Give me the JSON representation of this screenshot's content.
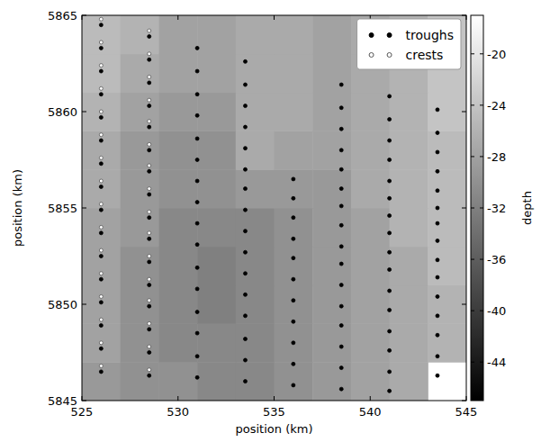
{
  "chart_data": {
    "type": "scatter",
    "xlabel": "position (km)",
    "ylabel": "position (km)",
    "xlim": [
      525,
      545
    ],
    "ylim": [
      5845,
      5865
    ],
    "xticks": [
      525,
      530,
      535,
      540,
      545
    ],
    "yticks": [
      5845,
      5850,
      5855,
      5860,
      5865
    ],
    "grid": false,
    "legend": "upper right",
    "series": [
      {
        "name": "troughs",
        "color": "black",
        "marker": "o",
        "x": [
          526,
          528.5,
          531,
          533.5,
          538.5,
          541,
          543.5,
          526,
          528.5,
          531,
          533.5,
          538.5,
          541,
          543.5,
          526,
          528.5,
          531,
          533.5,
          538.5,
          541,
          543.5,
          526,
          528.5,
          531,
          533.5,
          538.5,
          541,
          543.5,
          526,
          528.5,
          531,
          533.5,
          538.5,
          541,
          543.5,
          526,
          528.5,
          531,
          533.5,
          536,
          538.5,
          541,
          543.5,
          526,
          528.5,
          531,
          533.5,
          536,
          538.5,
          541,
          543.5,
          526,
          528.5,
          531,
          533.5,
          536,
          538.5,
          541,
          543.5,
          526,
          528.5,
          531,
          533.5,
          536,
          538.5,
          541,
          543.5,
          526,
          528.5,
          531,
          533.5,
          536,
          538.5,
          541,
          543.5,
          526,
          528.5,
          531,
          533.5,
          536,
          538.5,
          541,
          543.5,
          526,
          528.5,
          531,
          533.5,
          536,
          538.5,
          541,
          543.5,
          526,
          528.5,
          531,
          533.5,
          536,
          538.5,
          541,
          543.5,
          526,
          528.5,
          531,
          533.5,
          536,
          538.5,
          541,
          543.5,
          526,
          528.5,
          531,
          533.5,
          536,
          538.5,
          541,
          543.5,
          526,
          528.5,
          531,
          533.5,
          536,
          538.5,
          541
        ],
        "values": [
          5864.5,
          5863.9,
          5863.3,
          5862.6,
          5861.4,
          5860.8,
          5860.1,
          5863.3,
          5862.7,
          5862.1,
          5861.4,
          5860.2,
          5859.6,
          5858.9,
          5862.1,
          5861.5,
          5860.9,
          5860.3,
          5859.1,
          5858.5,
          5857.9,
          5860.9,
          5860.3,
          5859.8,
          5859.2,
          5858.0,
          5857.5,
          5856.9,
          5859.7,
          5859.2,
          5858.6,
          5858.1,
          5857.0,
          5856.4,
          5855.9,
          5858.5,
          5858.0,
          5857.5,
          5857.0,
          5856.5,
          5856.0,
          5855.5,
          5855.0,
          5857.3,
          5856.9,
          5856.4,
          5856.0,
          5855.5,
          5855.1,
          5854.6,
          5854.2,
          5856.1,
          5855.7,
          5855.3,
          5854.9,
          5854.5,
          5854.1,
          5853.7,
          5853.3,
          5854.9,
          5854.5,
          5854.2,
          5853.8,
          5853.4,
          5853.0,
          5852.7,
          5852.3,
          5853.7,
          5853.4,
          5853.1,
          5852.7,
          5852.4,
          5852.1,
          5851.8,
          5851.4,
          5852.5,
          5852.2,
          5851.9,
          5851.6,
          5851.3,
          5851.0,
          5850.7,
          5850.4,
          5851.3,
          5851.0,
          5850.8,
          5850.5,
          5850.2,
          5849.9,
          5849.7,
          5849.4,
          5850.1,
          5849.9,
          5849.6,
          5849.4,
          5849.1,
          5848.9,
          5848.6,
          5848.4,
          5848.9,
          5848.7,
          5848.5,
          5848.2,
          5848.0,
          5847.8,
          5847.6,
          5847.3,
          5847.7,
          5847.5,
          5847.3,
          5847.1,
          5846.9,
          5846.7,
          5846.5,
          5846.3,
          5846.5,
          5846.3,
          5846.2,
          5846.0,
          5845.8,
          5845.6,
          5845.5
        ]
      },
      {
        "name": "crests",
        "color": "white",
        "marker": "o",
        "x": [
          526,
          528.5,
          526,
          528.5,
          526,
          528.5,
          526,
          528.5,
          526,
          528.5,
          526,
          528.5,
          526,
          528.5,
          526,
          528.5,
          526,
          528.5,
          526,
          528.5,
          526,
          528.5,
          526,
          528.5,
          526,
          528.5,
          526,
          528.5,
          526,
          528.5,
          526,
          528.5
        ],
        "values": [
          5864.8,
          5864.2,
          5863.6,
          5863.0,
          5862.4,
          5861.8,
          5861.2,
          5860.6,
          5860.0,
          5859.5,
          5858.8,
          5858.3,
          5857.6,
          5857.2,
          5856.4,
          5856.0,
          5855.2,
          5854.8,
          5854.0,
          5853.7,
          5852.8,
          5852.5,
          5851.6,
          5851.3,
          5850.4,
          5850.2,
          5849.2,
          5849.0,
          5848.0,
          5847.8,
          5846.8,
          5846.6
        ]
      }
    ],
    "depth_grid": {
      "xbins": [
        525,
        527,
        529,
        531,
        533,
        535,
        537,
        539,
        541,
        543,
        545
      ],
      "ybins": [
        5845,
        5847,
        5849,
        5851,
        5853,
        5855,
        5857,
        5859,
        5861,
        5863,
        5865
      ],
      "values": [
        [
          -29,
          -30,
          -30,
          -31,
          -31,
          -30,
          -29,
          -28,
          -27,
          null
        ],
        [
          -28,
          -30,
          -31,
          -31,
          -31,
          -30,
          -29,
          -28,
          -27,
          -26
        ],
        [
          -28,
          -30,
          -31,
          -32,
          -31,
          -30,
          -29,
          -28,
          -27,
          -26
        ],
        [
          -28,
          -30,
          -31,
          -32,
          -31,
          -30,
          -29,
          -28,
          -27,
          -25
        ],
        [
          -28,
          -29,
          -31,
          -31,
          -31,
          -30,
          -29,
          -28,
          -26,
          -25
        ],
        [
          -27,
          -29,
          -30,
          -30,
          -29,
          -29,
          -29,
          -27,
          -26,
          -25
        ],
        [
          -27,
          -29,
          -30,
          -30,
          -27,
          -28,
          -28,
          -27,
          -26,
          -25
        ],
        [
          -26,
          -28,
          -29,
          -29,
          -27,
          -27,
          -28,
          -27,
          -26,
          -24
        ],
        [
          -25,
          -27,
          -28,
          -28,
          -27,
          -27,
          -28,
          -27,
          -26,
          -24
        ],
        [
          -25,
          -26,
          -28,
          -28,
          -27,
          -27,
          -28,
          -27,
          -26,
          -24
        ]
      ]
    },
    "colorbar": {
      "label": "depth",
      "range": [
        -47,
        -17
      ],
      "ticks": [
        -20,
        -24,
        -28,
        -32,
        -36,
        -40,
        -44
      ]
    }
  }
}
